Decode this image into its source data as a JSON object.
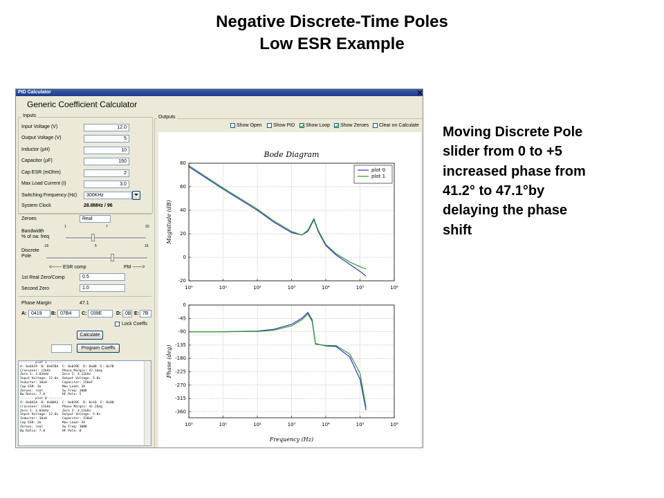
{
  "slide": {
    "title": [
      "Negative Discrete-Time Poles",
      "Low ESR Example"
    ],
    "note": [
      "Moving Discrete Pole",
      "slider from 0 to +5",
      "increased phase from",
      "41.2° to 47.1°by",
      "delaying the phase",
      "shift"
    ]
  },
  "window": {
    "title": "PID Calculator",
    "heading": "Generic Coefficient Calculator",
    "inputs": {
      "label": "Inputs",
      "fields": [
        {
          "label": "Input Voltage (V)",
          "value": "12.0"
        },
        {
          "label": "Output Voltage (V)",
          "value": "5"
        },
        {
          "label": "Inductor (µH)",
          "value": "10"
        },
        {
          "label": "Capacitor (µF)",
          "value": "150"
        },
        {
          "label": "Cap ESR (mOhm)",
          "value": "2"
        },
        {
          "label": "Max Load Current (I)",
          "value": "3.0"
        }
      ],
      "switching": {
        "label": "Switching Frequency (Hz)",
        "value": "300KHz"
      },
      "clock": {
        "label": "System Clock",
        "value": "28.8MHz / 96"
      }
    },
    "zeroes": {
      "label": "Zeroes",
      "value": "Real"
    },
    "bandwidth": {
      "label": [
        "Bandwidth",
        "% of sw. freq"
      ],
      "scale": [
        1,
        7,
        20
      ]
    },
    "discrete_pole": {
      "label": [
        "Discrete",
        "Pole"
      ],
      "scale": [
        -16,
        5,
        16
      ]
    },
    "slider_hint": [
      "<------ ESR comp",
      "PM ------>"
    ],
    "zeros": [
      {
        "label": "1st Real Zero/Comp",
        "value": "0.5"
      },
      {
        "label": "Second Zero",
        "value": "1.0"
      }
    ],
    "phase_margin": {
      "label": "Phase Margin",
      "value": "47.1"
    },
    "coefficients": [
      {
        "label": "A:",
        "value": "0419"
      },
      {
        "label": "B:",
        "value": "07B4"
      },
      {
        "label": "C:",
        "value": "039E"
      },
      {
        "label": "D:",
        "value": "0B"
      },
      {
        "label": "E:",
        "value": "7B"
      }
    ],
    "lock_coeffs": {
      "label": "Lock Coeffs",
      "checked": false
    },
    "calculate": "Calculate",
    "program": "Program Coeffs",
    "log": [
      "------- plot 1 -------",
      "A: 0x0419  B: 0x07B4  C: 0x039E  D: 0x0B  E: 0x7B",
      "Crossover: 12kHz      Phase Margin: 47.1deg",
      "Zero 1: 3.03kHz       Zero 2: 4.11kHz",
      "Input Voltage: 12.0v  Output Voltage: 5.0v",
      "Inductor: 10uH        Capacitor: 150uF",
      "Cap ESR: 2m           Max Load: 3A",
      "Zeroes: real          Sw Freq: 300K",
      "Bw Ratio: 7.0         HF Pole: 5",
      "------- plot 0 -------",
      "A: 0x041A  B: 0x08A3  C: 0x039C  D: 0x10  E: 0x80",
      "Crossover: 11kHz      Phase Margin: 41.2deg",
      "Zero 1: 3.03kHz       Zero 2: 4.11kHz",
      "Input Voltage: 12.0v  Output Voltage: 5.0v",
      "Inductor: 10uH        Capacitor: 150uF",
      "Cap ESR: 2m           Max Load: 3A",
      "Zeroes: real          Sw Freq: 300K",
      "Bw Ratio: 7.0         HF Pole: 0"
    ],
    "outputs": {
      "label": "Outputs",
      "checkboxes": [
        {
          "label": "Show Open",
          "checked": false
        },
        {
          "label": "Show PID",
          "checked": false
        },
        {
          "label": "Show Loop",
          "checked": true
        },
        {
          "label": "Show Zeroes",
          "checked": true
        },
        {
          "label": "Clear on Calculate",
          "checked": false
        }
      ]
    }
  },
  "chart_data": [
    {
      "type": "line",
      "title": "Bode Diagram",
      "ylabel": "Magnitude (dB)",
      "xscale": "log",
      "grid": true,
      "legend": "upper right",
      "xlim": [
        1,
        1000000
      ],
      "xticks": [
        {
          "value": 1,
          "label": "10⁰"
        },
        {
          "value": 10,
          "label": "10¹"
        },
        {
          "value": 100,
          "label": "10²"
        },
        {
          "value": 1000,
          "label": "10³"
        },
        {
          "value": 10000,
          "label": "10⁴"
        },
        {
          "value": 100000,
          "label": "10⁵"
        },
        {
          "value": 1000000,
          "label": "10⁶"
        }
      ],
      "ylim": [
        -20,
        80
      ],
      "yticks": [
        -20,
        0,
        20,
        40,
        60,
        80
      ],
      "x": [
        1,
        10,
        100,
        300,
        1000,
        2000,
        3000,
        4500,
        6000,
        10000,
        20000,
        50000,
        100000,
        150000
      ],
      "series": [
        {
          "name": "plot 0",
          "color": "#3030c8",
          "values": [
            77,
            58,
            40,
            30,
            21,
            19,
            22,
            32,
            22,
            10,
            2,
            -6,
            -12,
            -16
          ]
        },
        {
          "name": "plot 1",
          "color": "#2a9a2a",
          "values": [
            78,
            59,
            41,
            31,
            22,
            19,
            23,
            33,
            23,
            11,
            3,
            -4,
            -8,
            -10
          ]
        }
      ]
    },
    {
      "type": "line",
      "ylabel": "Phase (deg)",
      "xlabel": "Frequency (Hz)",
      "xscale": "log",
      "grid": true,
      "xlim": [
        1,
        1000000
      ],
      "xticks": [
        {
          "value": 1,
          "label": "10⁰"
        },
        {
          "value": 10,
          "label": "10¹"
        },
        {
          "value": 100,
          "label": "10²"
        },
        {
          "value": 1000,
          "label": "10³"
        },
        {
          "value": 10000,
          "label": "10⁴"
        },
        {
          "value": 100000,
          "label": "10⁵"
        },
        {
          "value": 1000000,
          "label": "10⁶"
        }
      ],
      "ylim": [
        -380,
        0
      ],
      "yticks": [
        0,
        -45,
        -90,
        -135,
        -180,
        -225,
        -270,
        -315,
        -360
      ],
      "x": [
        1,
        10,
        100,
        300,
        1000,
        2000,
        3000,
        4000,
        5000,
        10000,
        20000,
        50000,
        100000,
        150000
      ],
      "series": [
        {
          "color": "#3030c8",
          "values": [
            -90,
            -90,
            -88,
            -82,
            -65,
            -45,
            -25,
            -50,
            -130,
            -138,
            -140,
            -175,
            -250,
            -355
          ]
        },
        {
          "color": "#2a9a2a",
          "values": [
            -90,
            -90,
            -89,
            -85,
            -70,
            -50,
            -30,
            -55,
            -132,
            -136,
            -137,
            -165,
            -230,
            -345
          ]
        }
      ]
    }
  ]
}
